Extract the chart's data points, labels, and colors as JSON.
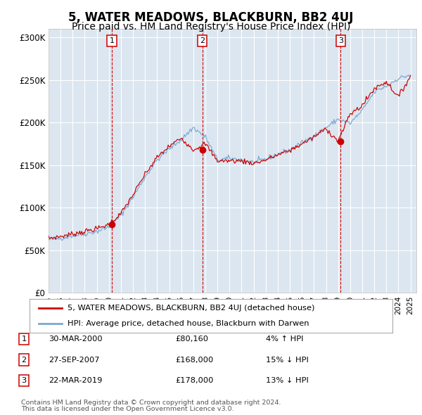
{
  "title": "5, WATER MEADOWS, BLACKBURN, BB2 4UJ",
  "subtitle": "Price paid vs. HM Land Registry's House Price Index (HPI)",
  "title_fontsize": 12,
  "subtitle_fontsize": 10,
  "ylabel_ticks": [
    "£0",
    "£50K",
    "£100K",
    "£150K",
    "£200K",
    "£250K",
    "£300K"
  ],
  "ytick_values": [
    0,
    50000,
    100000,
    150000,
    200000,
    250000,
    300000
  ],
  "ylim": [
    0,
    310000
  ],
  "xlim_start": 1995.0,
  "xlim_end": 2025.5,
  "background_color": "#ffffff",
  "plot_bg_color": "#dce6f0",
  "grid_color": "#ffffff",
  "red_line_color": "#cc0000",
  "blue_line_color": "#7aa8d2",
  "sale_marker_color": "#cc0000",
  "dashed_line_color": "#cc0000",
  "annotations": [
    {
      "label": "1",
      "x": 2000.25,
      "price": 80160
    },
    {
      "label": "2",
      "x": 2007.74,
      "price": 168000
    },
    {
      "label": "3",
      "x": 2019.22,
      "price": 178000
    }
  ],
  "legend_line1": "5, WATER MEADOWS, BLACKBURN, BB2 4UJ (detached house)",
  "legend_line2": "HPI: Average price, detached house, Blackburn with Darwen",
  "footer1": "Contains HM Land Registry data © Crown copyright and database right 2024.",
  "footer2": "This data is licensed under the Open Government Licence v3.0.",
  "table_rows": [
    {
      "num": "1",
      "date": "30-MAR-2000",
      "price": "£80,160",
      "pct": "4% ↑ HPI"
    },
    {
      "num": "2",
      "date": "27-SEP-2007",
      "price": "£168,000",
      "pct": "15% ↓ HPI"
    },
    {
      "num": "3",
      "date": "22-MAR-2019",
      "price": "£178,000",
      "pct": "13% ↓ HPI"
    }
  ],
  "hpi_keypoints": {
    "years": [
      1995,
      1996,
      1997,
      1998,
      1999,
      2000,
      2001,
      2002,
      2003,
      2004,
      2005,
      2006,
      2007,
      2008,
      2009,
      2010,
      2011,
      2012,
      2013,
      2014,
      2015,
      2016,
      2017,
      2018,
      2019,
      2020,
      2021,
      2022,
      2023,
      2024,
      2025
    ],
    "vals": [
      62000,
      64000,
      67000,
      69000,
      72000,
      77000,
      91000,
      112000,
      136000,
      156000,
      169000,
      180000,
      194000,
      183000,
      156000,
      158000,
      156000,
      153000,
      157000,
      163000,
      168000,
      176000,
      184000,
      194000,
      204000,
      199000,
      214000,
      236000,
      243000,
      252000,
      256000
    ]
  },
  "red_keypoints": {
    "years": [
      1995,
      1996,
      1997,
      1998,
      1999,
      2000,
      2001,
      2002,
      2003,
      2004,
      2005,
      2006,
      2007,
      2008,
      2009,
      2010,
      2011,
      2012,
      2013,
      2014,
      2015,
      2016,
      2017,
      2018,
      2019,
      2020,
      2021,
      2022,
      2023,
      2024,
      2025
    ],
    "vals": [
      64000,
      66000,
      69000,
      72000,
      75000,
      80160,
      93000,
      115000,
      139000,
      159000,
      172000,
      182000,
      168000,
      175000,
      155000,
      155000,
      155000,
      152000,
      156000,
      162000,
      167000,
      175000,
      183000,
      193000,
      178000,
      210000,
      220000,
      240000,
      248000,
      230000,
      255000
    ]
  }
}
